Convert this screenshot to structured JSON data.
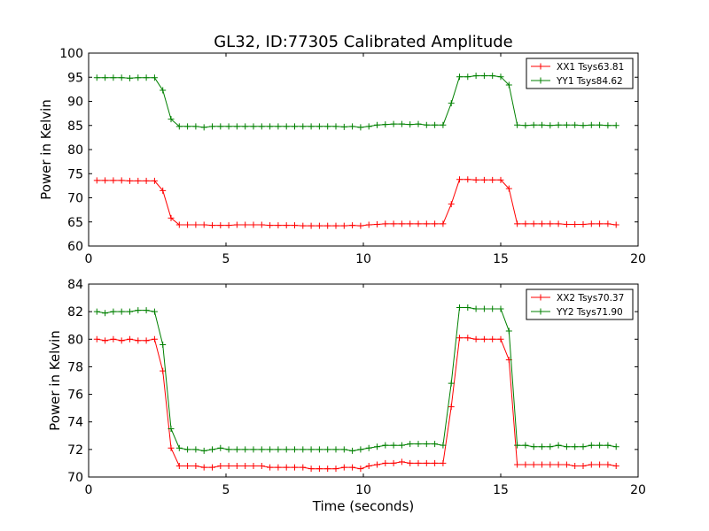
{
  "figure_title": "GL32, ID:77305 Calibrated Amplitude",
  "colors": {
    "red": "#ff0000",
    "green": "#008000",
    "frame": "#000000",
    "background": "#ffffff"
  },
  "chart_data": [
    {
      "type": "line",
      "title": "GL32, ID:77305 Calibrated Amplitude",
      "xlabel": "",
      "ylabel": "Power in Kelvin",
      "xlim": [
        0,
        20
      ],
      "ylim": [
        60,
        100
      ],
      "xticks": [
        "0",
        "5",
        "10",
        "15",
        "20"
      ],
      "yticks": [
        "60",
        "65",
        "70",
        "75",
        "80",
        "85",
        "90",
        "95",
        "100"
      ],
      "grid": false,
      "legend_position": "top-right",
      "marker": "plus",
      "x": [
        0.3,
        0.6,
        0.9,
        1.2,
        1.5,
        1.8,
        2.1,
        2.4,
        2.7,
        3.0,
        3.3,
        3.6,
        3.9,
        4.2,
        4.5,
        4.8,
        5.1,
        5.4,
        5.7,
        6.0,
        6.3,
        6.6,
        6.9,
        7.2,
        7.5,
        7.8,
        8.1,
        8.4,
        8.7,
        9.0,
        9.3,
        9.6,
        9.9,
        10.2,
        10.5,
        10.8,
        11.1,
        11.4,
        11.7,
        12.0,
        12.3,
        12.6,
        12.9,
        13.2,
        13.5,
        13.8,
        14.1,
        14.4,
        14.7,
        15.0,
        15.3,
        15.6,
        15.9,
        16.2,
        16.5,
        16.8,
        17.1,
        17.4,
        17.7,
        18.0,
        18.3,
        18.6,
        18.9,
        19.2
      ],
      "series": [
        {
          "name": "XX1 Tsys63.81",
          "color": "#ff0000",
          "values": [
            73.6,
            73.6,
            73.6,
            73.6,
            73.5,
            73.5,
            73.5,
            73.5,
            71.5,
            65.8,
            64.4,
            64.4,
            64.4,
            64.4,
            64.3,
            64.3,
            64.3,
            64.4,
            64.4,
            64.4,
            64.4,
            64.3,
            64.3,
            64.3,
            64.3,
            64.2,
            64.2,
            64.2,
            64.2,
            64.2,
            64.2,
            64.3,
            64.2,
            64.4,
            64.5,
            64.6,
            64.6,
            64.6,
            64.6,
            64.6,
            64.6,
            64.6,
            64.6,
            68.7,
            73.8,
            73.8,
            73.7,
            73.7,
            73.7,
            73.7,
            71.9,
            64.6,
            64.6,
            64.6,
            64.6,
            64.6,
            64.6,
            64.5,
            64.5,
            64.5,
            64.6,
            64.6,
            64.6,
            64.4
          ]
        },
        {
          "name": "YY1 Tsys84.62",
          "color": "#008000",
          "values": [
            94.9,
            94.9,
            94.9,
            94.9,
            94.8,
            94.9,
            94.9,
            94.9,
            92.3,
            86.3,
            84.8,
            84.8,
            84.8,
            84.6,
            84.8,
            84.8,
            84.8,
            84.8,
            84.8,
            84.8,
            84.8,
            84.8,
            84.8,
            84.8,
            84.8,
            84.8,
            84.8,
            84.8,
            84.8,
            84.8,
            84.7,
            84.8,
            84.6,
            84.8,
            85.1,
            85.2,
            85.3,
            85.3,
            85.2,
            85.3,
            85.1,
            85.1,
            85.1,
            89.6,
            95.1,
            95.1,
            95.3,
            95.3,
            95.3,
            95.1,
            93.4,
            85.1,
            85.0,
            85.1,
            85.1,
            85.0,
            85.1,
            85.1,
            85.1,
            85.0,
            85.1,
            85.1,
            85.0,
            85.0
          ]
        }
      ]
    },
    {
      "type": "line",
      "title": "",
      "xlabel": "Time (seconds)",
      "ylabel": "Power in Kelvin",
      "xlim": [
        0,
        20
      ],
      "ylim": [
        70,
        84
      ],
      "xticks": [
        "0",
        "5",
        "10",
        "15",
        "20"
      ],
      "yticks": [
        "70",
        "72",
        "74",
        "76",
        "78",
        "80",
        "82",
        "84"
      ],
      "grid": false,
      "legend_position": "top-right",
      "marker": "plus",
      "x": [
        0.3,
        0.6,
        0.9,
        1.2,
        1.5,
        1.8,
        2.1,
        2.4,
        2.7,
        3.0,
        3.3,
        3.6,
        3.9,
        4.2,
        4.5,
        4.8,
        5.1,
        5.4,
        5.7,
        6.0,
        6.3,
        6.6,
        6.9,
        7.2,
        7.5,
        7.8,
        8.1,
        8.4,
        8.7,
        9.0,
        9.3,
        9.6,
        9.9,
        10.2,
        10.5,
        10.8,
        11.1,
        11.4,
        11.7,
        12.0,
        12.3,
        12.6,
        12.9,
        13.2,
        13.5,
        13.8,
        14.1,
        14.4,
        14.7,
        15.0,
        15.3,
        15.6,
        15.9,
        16.2,
        16.5,
        16.8,
        17.1,
        17.4,
        17.7,
        18.0,
        18.3,
        18.6,
        18.9,
        19.2
      ],
      "series": [
        {
          "name": "XX2 Tsys70.37",
          "color": "#ff0000",
          "values": [
            80.0,
            79.9,
            80.0,
            79.9,
            80.0,
            79.9,
            79.9,
            80.0,
            77.7,
            72.1,
            70.8,
            70.8,
            70.8,
            70.7,
            70.7,
            70.8,
            70.8,
            70.8,
            70.8,
            70.8,
            70.8,
            70.7,
            70.7,
            70.7,
            70.7,
            70.7,
            70.6,
            70.6,
            70.6,
            70.6,
            70.7,
            70.7,
            70.6,
            70.8,
            70.9,
            71.0,
            71.0,
            71.1,
            71.0,
            71.0,
            71.0,
            71.0,
            71.0,
            75.1,
            80.1,
            80.1,
            80.0,
            80.0,
            80.0,
            80.0,
            78.5,
            70.9,
            70.9,
            70.9,
            70.9,
            70.9,
            70.9,
            70.9,
            70.8,
            70.8,
            70.9,
            70.9,
            70.9,
            70.8
          ]
        },
        {
          "name": "YY2 Tsys71.90",
          "color": "#008000",
          "values": [
            82.0,
            81.9,
            82.0,
            82.0,
            82.0,
            82.1,
            82.1,
            82.0,
            79.6,
            73.5,
            72.1,
            72.0,
            72.0,
            71.9,
            72.0,
            72.1,
            72.0,
            72.0,
            72.0,
            72.0,
            72.0,
            72.0,
            72.0,
            72.0,
            72.0,
            72.0,
            72.0,
            72.0,
            72.0,
            72.0,
            72.0,
            71.9,
            72.0,
            72.1,
            72.2,
            72.3,
            72.3,
            72.3,
            72.4,
            72.4,
            72.4,
            72.4,
            72.3,
            76.8,
            82.3,
            82.3,
            82.2,
            82.2,
            82.2,
            82.2,
            80.6,
            72.3,
            72.3,
            72.2,
            72.2,
            72.2,
            72.3,
            72.2,
            72.2,
            72.2,
            72.3,
            72.3,
            72.3,
            72.2
          ]
        }
      ]
    }
  ]
}
